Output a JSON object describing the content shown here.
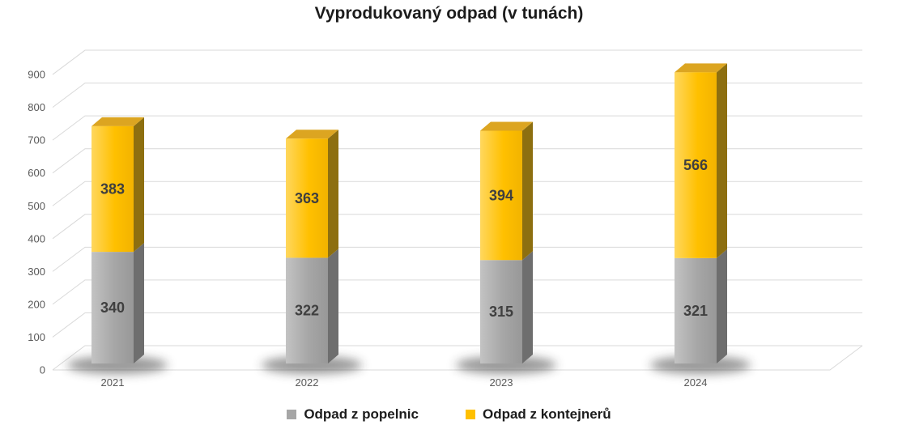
{
  "chart_data": {
    "type": "bar",
    "variant": "stacked-3d",
    "title": "Vyprodukovaný odpad (v tunách)",
    "categories": [
      "2021",
      "2022",
      "2023",
      "2024"
    ],
    "series": [
      {
        "name": "Odpad z popelnic",
        "values": [
          340,
          322,
          315,
          321
        ],
        "color": "#A6A6A6",
        "front_light": "#C3C3C3",
        "front_dark": "#989898",
        "side": "#6E6E6E",
        "top": "#8C8C8C",
        "label_color": "#3F3F3F"
      },
      {
        "name": "Odpad z kontejnerů",
        "values": [
          383,
          363,
          394,
          566
        ],
        "color": "#FFC000",
        "front_light": "#FFD75E",
        "front_dark": "#F2B300",
        "side": "#8D6F10",
        "top": "#DCA521",
        "label_color": "#3F3F3F"
      }
    ],
    "ylim": [
      0,
      900
    ],
    "yticks": [
      0,
      100,
      200,
      300,
      400,
      500,
      600,
      700,
      800,
      900
    ],
    "grid": true,
    "legend_position": "bottom",
    "axis_text_color": "#595959",
    "grid_color": "#D9D9D9"
  }
}
